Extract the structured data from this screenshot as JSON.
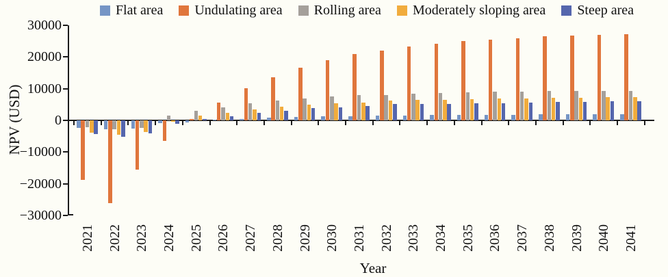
{
  "figure": {
    "background": "#FDFDF6",
    "text_color": "#111111",
    "axis_color": "#1a1a1a"
  },
  "chart_data": {
    "type": "bar",
    "title": "",
    "xlabel": "Year",
    "ylabel": "NPV (USD)",
    "ylim": [
      -30000,
      30000
    ],
    "yticks": [
      30000,
      20000,
      10000,
      0,
      -10000,
      -20000,
      -30000
    ],
    "ytick_labels": [
      "30000",
      "20000",
      "10000",
      "0",
      "−10000",
      "−20000",
      "−30000"
    ],
    "grid": false,
    "legend_position": "top",
    "categories": [
      "2021",
      "2022",
      "2023",
      "2024",
      "2025",
      "2026",
      "2027",
      "2028",
      "2029",
      "2030",
      "2031",
      "2032",
      "2033",
      "2034",
      "2035",
      "2036",
      "2037",
      "2038",
      "2039",
      "2040",
      "2041"
    ],
    "series": [
      {
        "name": "Flat area",
        "color": "#7695C5",
        "values": [
          -2400,
          -2900,
          -2500,
          -800,
          -700,
          200,
          400,
          800,
          1100,
          1300,
          1400,
          1500,
          1600,
          1700,
          1700,
          1800,
          1800,
          1900,
          1900,
          2000,
          2000
        ]
      },
      {
        "name": "Undulating area",
        "color": "#E0763C",
        "values": [
          -18800,
          -26200,
          -15500,
          -6500,
          500,
          5700,
          10100,
          13700,
          16600,
          19000,
          20900,
          22100,
          23400,
          24300,
          25100,
          25600,
          26000,
          26500,
          26800,
          27000,
          27200
        ]
      },
      {
        "name": "Rolling area",
        "color": "#A5A09B",
        "values": [
          -2100,
          -2700,
          -2400,
          1600,
          3000,
          4200,
          5500,
          6200,
          7000,
          7500,
          7900,
          8100,
          8500,
          8700,
          8900,
          9000,
          9100,
          9200,
          9200,
          9300,
          9400
        ]
      },
      {
        "name": "Moderately sloping area",
        "color": "#F1AC3D",
        "values": [
          -3900,
          -4600,
          -3600,
          -400,
          1500,
          2400,
          3500,
          4300,
          5000,
          5400,
          5700,
          6200,
          6400,
          6500,
          6800,
          6900,
          7000,
          7100,
          7200,
          7300,
          7300
        ]
      },
      {
        "name": "Steep area",
        "color": "#5566AD",
        "values": [
          -4300,
          -5100,
          -4000,
          -1100,
          400,
          1400,
          2300,
          3100,
          3800,
          4200,
          4500,
          5100,
          5300,
          5300,
          5400,
          5500,
          5700,
          5900,
          5900,
          6000,
          6100
        ]
      }
    ]
  }
}
